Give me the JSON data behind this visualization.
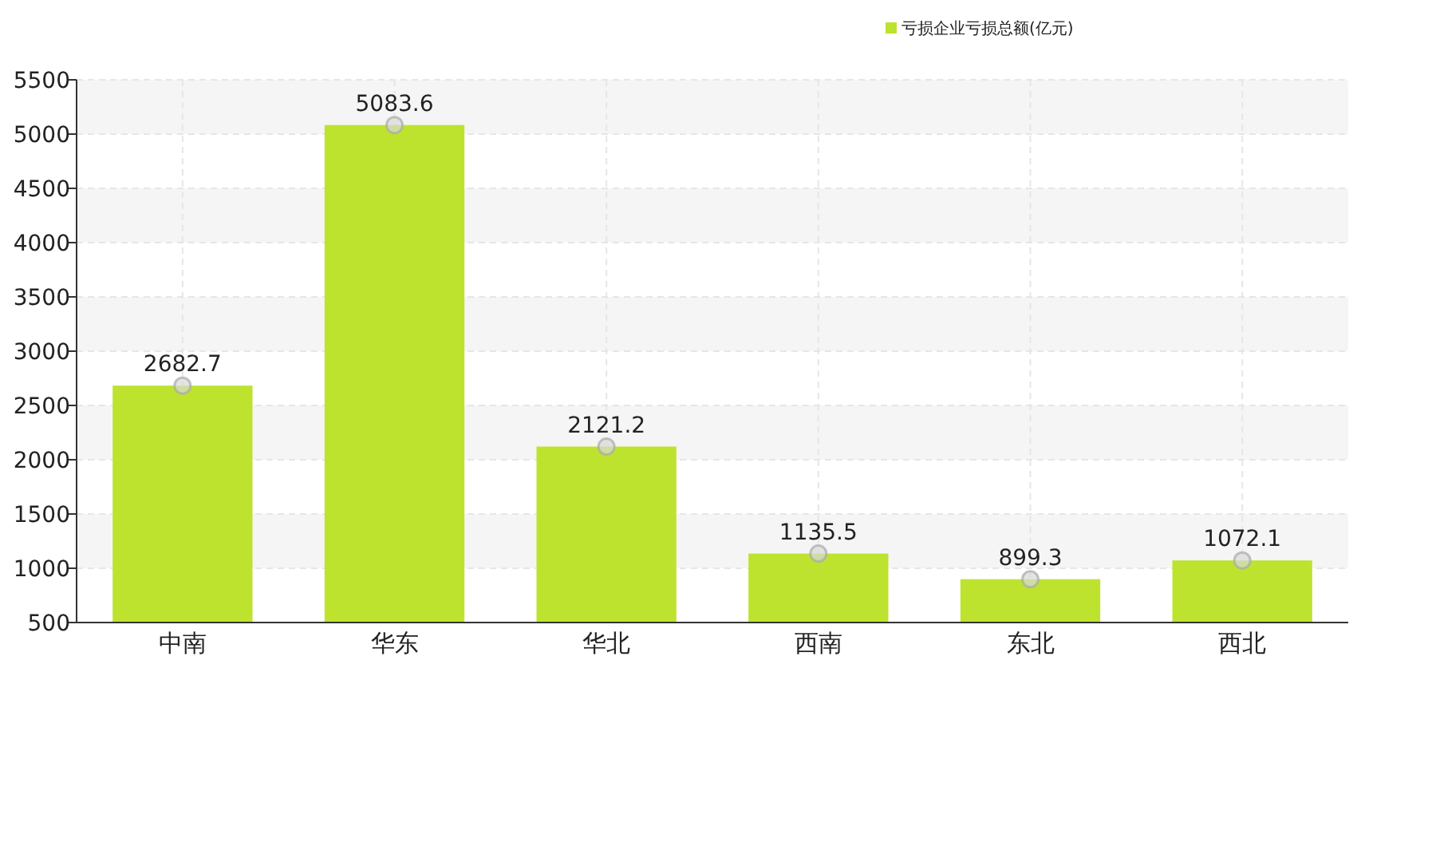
{
  "chart_data": {
    "type": "bar",
    "categories": [
      "中南",
      "华东",
      "华北",
      "西南",
      "东北",
      "西北"
    ],
    "series": [
      {
        "name": "亏损企业亏损总额(亿元)",
        "color": "#bde32f",
        "values": [
          2682.7,
          5083.6,
          2121.2,
          1135.5,
          899.3,
          1072.1
        ]
      },
      {
        "type": "scatter",
        "color": "#d8d8d8",
        "marker": "circle",
        "x": [
          "中南",
          "华东",
          "华北",
          "西南",
          "东北",
          "西北"
        ],
        "values": [
          2682.7,
          5083.6,
          2121.2,
          1135.5,
          899.3,
          1072.1
        ],
        "value_labels": [
          "2682.7",
          "5083.6",
          "2121.2",
          "1135.5",
          "899.3",
          "1072.1"
        ]
      }
    ],
    "ylim": [
      500,
      5500
    ],
    "yticks": [
      500,
      1000,
      1500,
      2000,
      2500,
      3000,
      3500,
      4000,
      4500,
      5000,
      5500
    ],
    "grid": true,
    "legend": "top right"
  }
}
